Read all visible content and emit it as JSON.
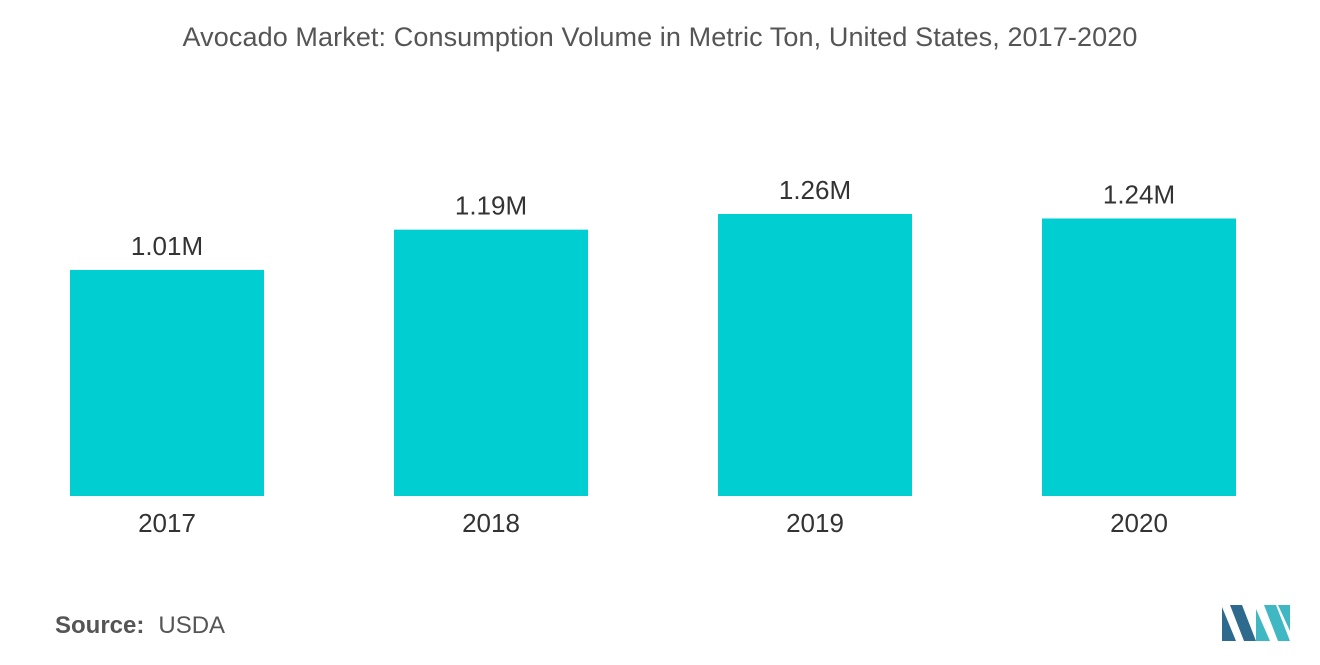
{
  "colors": {
    "bar": "#00CED1",
    "logo_dark": "#2E6A8E",
    "logo_light": "#3FB8C4"
  },
  "source": {
    "label": "Source:",
    "value": "USDA"
  },
  "logo": {
    "icon": "mordor-logo-icon"
  },
  "chart_data": {
    "type": "bar",
    "title": "Avocado Market: Consumption Volume in Metric Ton, United States, 2017-2020",
    "xlabel": "",
    "ylabel": "",
    "categories": [
      "2017",
      "2018",
      "2019",
      "2020"
    ],
    "values": [
      1.01,
      1.19,
      1.26,
      1.24
    ],
    "value_labels": [
      "1.01M",
      "1.19M",
      "1.26M",
      "1.24M"
    ],
    "ylim": [
      0,
      1.26
    ],
    "grid": false,
    "legend": "none"
  }
}
